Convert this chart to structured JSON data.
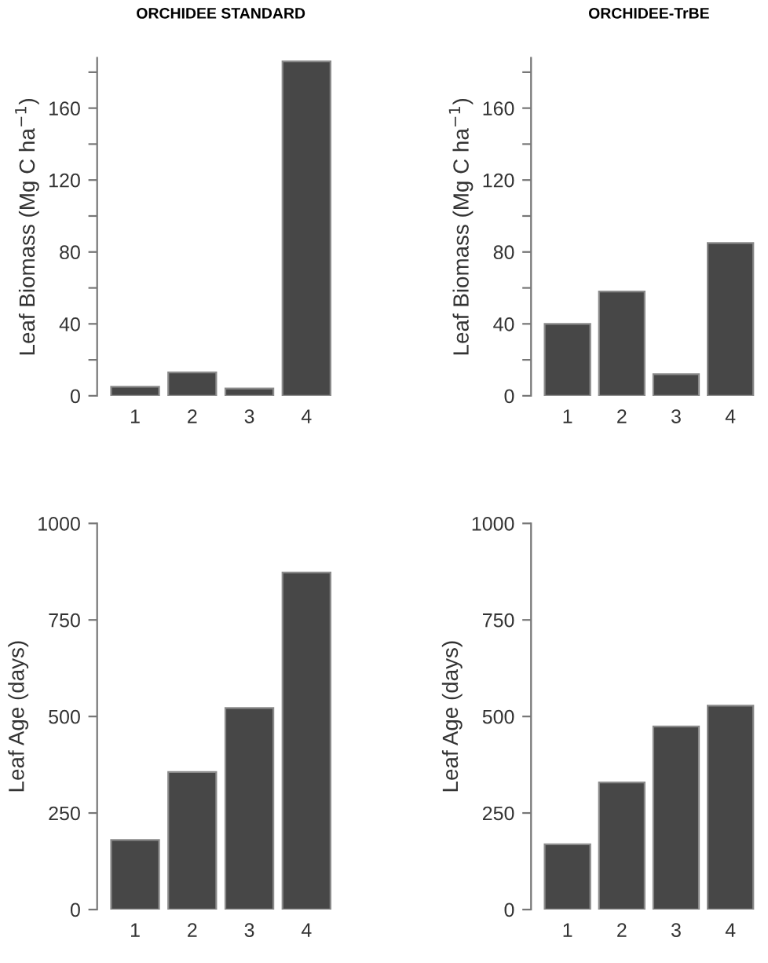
{
  "chart_data": [
    {
      "type": "bar",
      "title": "ORCHIDEE STANDARD",
      "ylabel": "Leaf Biomass (Mg C ha$^{−1}$)",
      "categories": [
        "1",
        "2",
        "3",
        "4"
      ],
      "color": "#474747",
      "values": [
        5,
        13,
        4,
        186
      ],
      "ylim": [
        0,
        188
      ],
      "yticks": [
        0,
        {
          "value": 20,
          "label": null
        },
        40,
        {
          "value": 60,
          "label": null
        },
        80,
        {
          "value": 100,
          "label": null
        },
        120,
        {
          "value": 140,
          "label": null
        },
        160,
        {
          "value": 180,
          "label": null
        }
      ],
      "grid": false
    },
    {
      "type": "bar",
      "title": "ORCHIDEE-TrBE",
      "ylabel": "Leaf Biomass (Mg C ha$^{−1}$)",
      "categories": [
        "1",
        "2",
        "3",
        "4"
      ],
      "color": "#474747",
      "values": [
        40,
        58,
        12,
        85
      ],
      "ylim": [
        0,
        188
      ],
      "yticks": [
        0,
        {
          "value": 20,
          "label": null
        },
        40,
        {
          "value": 60,
          "label": null
        },
        80,
        {
          "value": 100,
          "label": null
        },
        120,
        {
          "value": 140,
          "label": null
        },
        160,
        {
          "value": 180,
          "label": null
        }
      ],
      "grid": false
    },
    {
      "type": "bar",
      "ylabel": "Leaf Age (days)",
      "categories": [
        "1",
        "2",
        "3",
        "4"
      ],
      "color": "#474747",
      "values": [
        180,
        356,
        522,
        873
      ],
      "ylim": [
        0,
        1000
      ],
      "yticks": [
        0,
        250,
        500,
        750,
        1000
      ],
      "grid": false
    },
    {
      "type": "bar",
      "ylabel": "Leaf Age (days)",
      "categories": [
        "1",
        "2",
        "3",
        "4"
      ],
      "color": "#474747",
      "values": [
        169,
        329,
        474,
        528
      ],
      "ylim": [
        0,
        1000
      ],
      "yticks": [
        0,
        250,
        500,
        750,
        1000
      ],
      "grid": false
    }
  ]
}
